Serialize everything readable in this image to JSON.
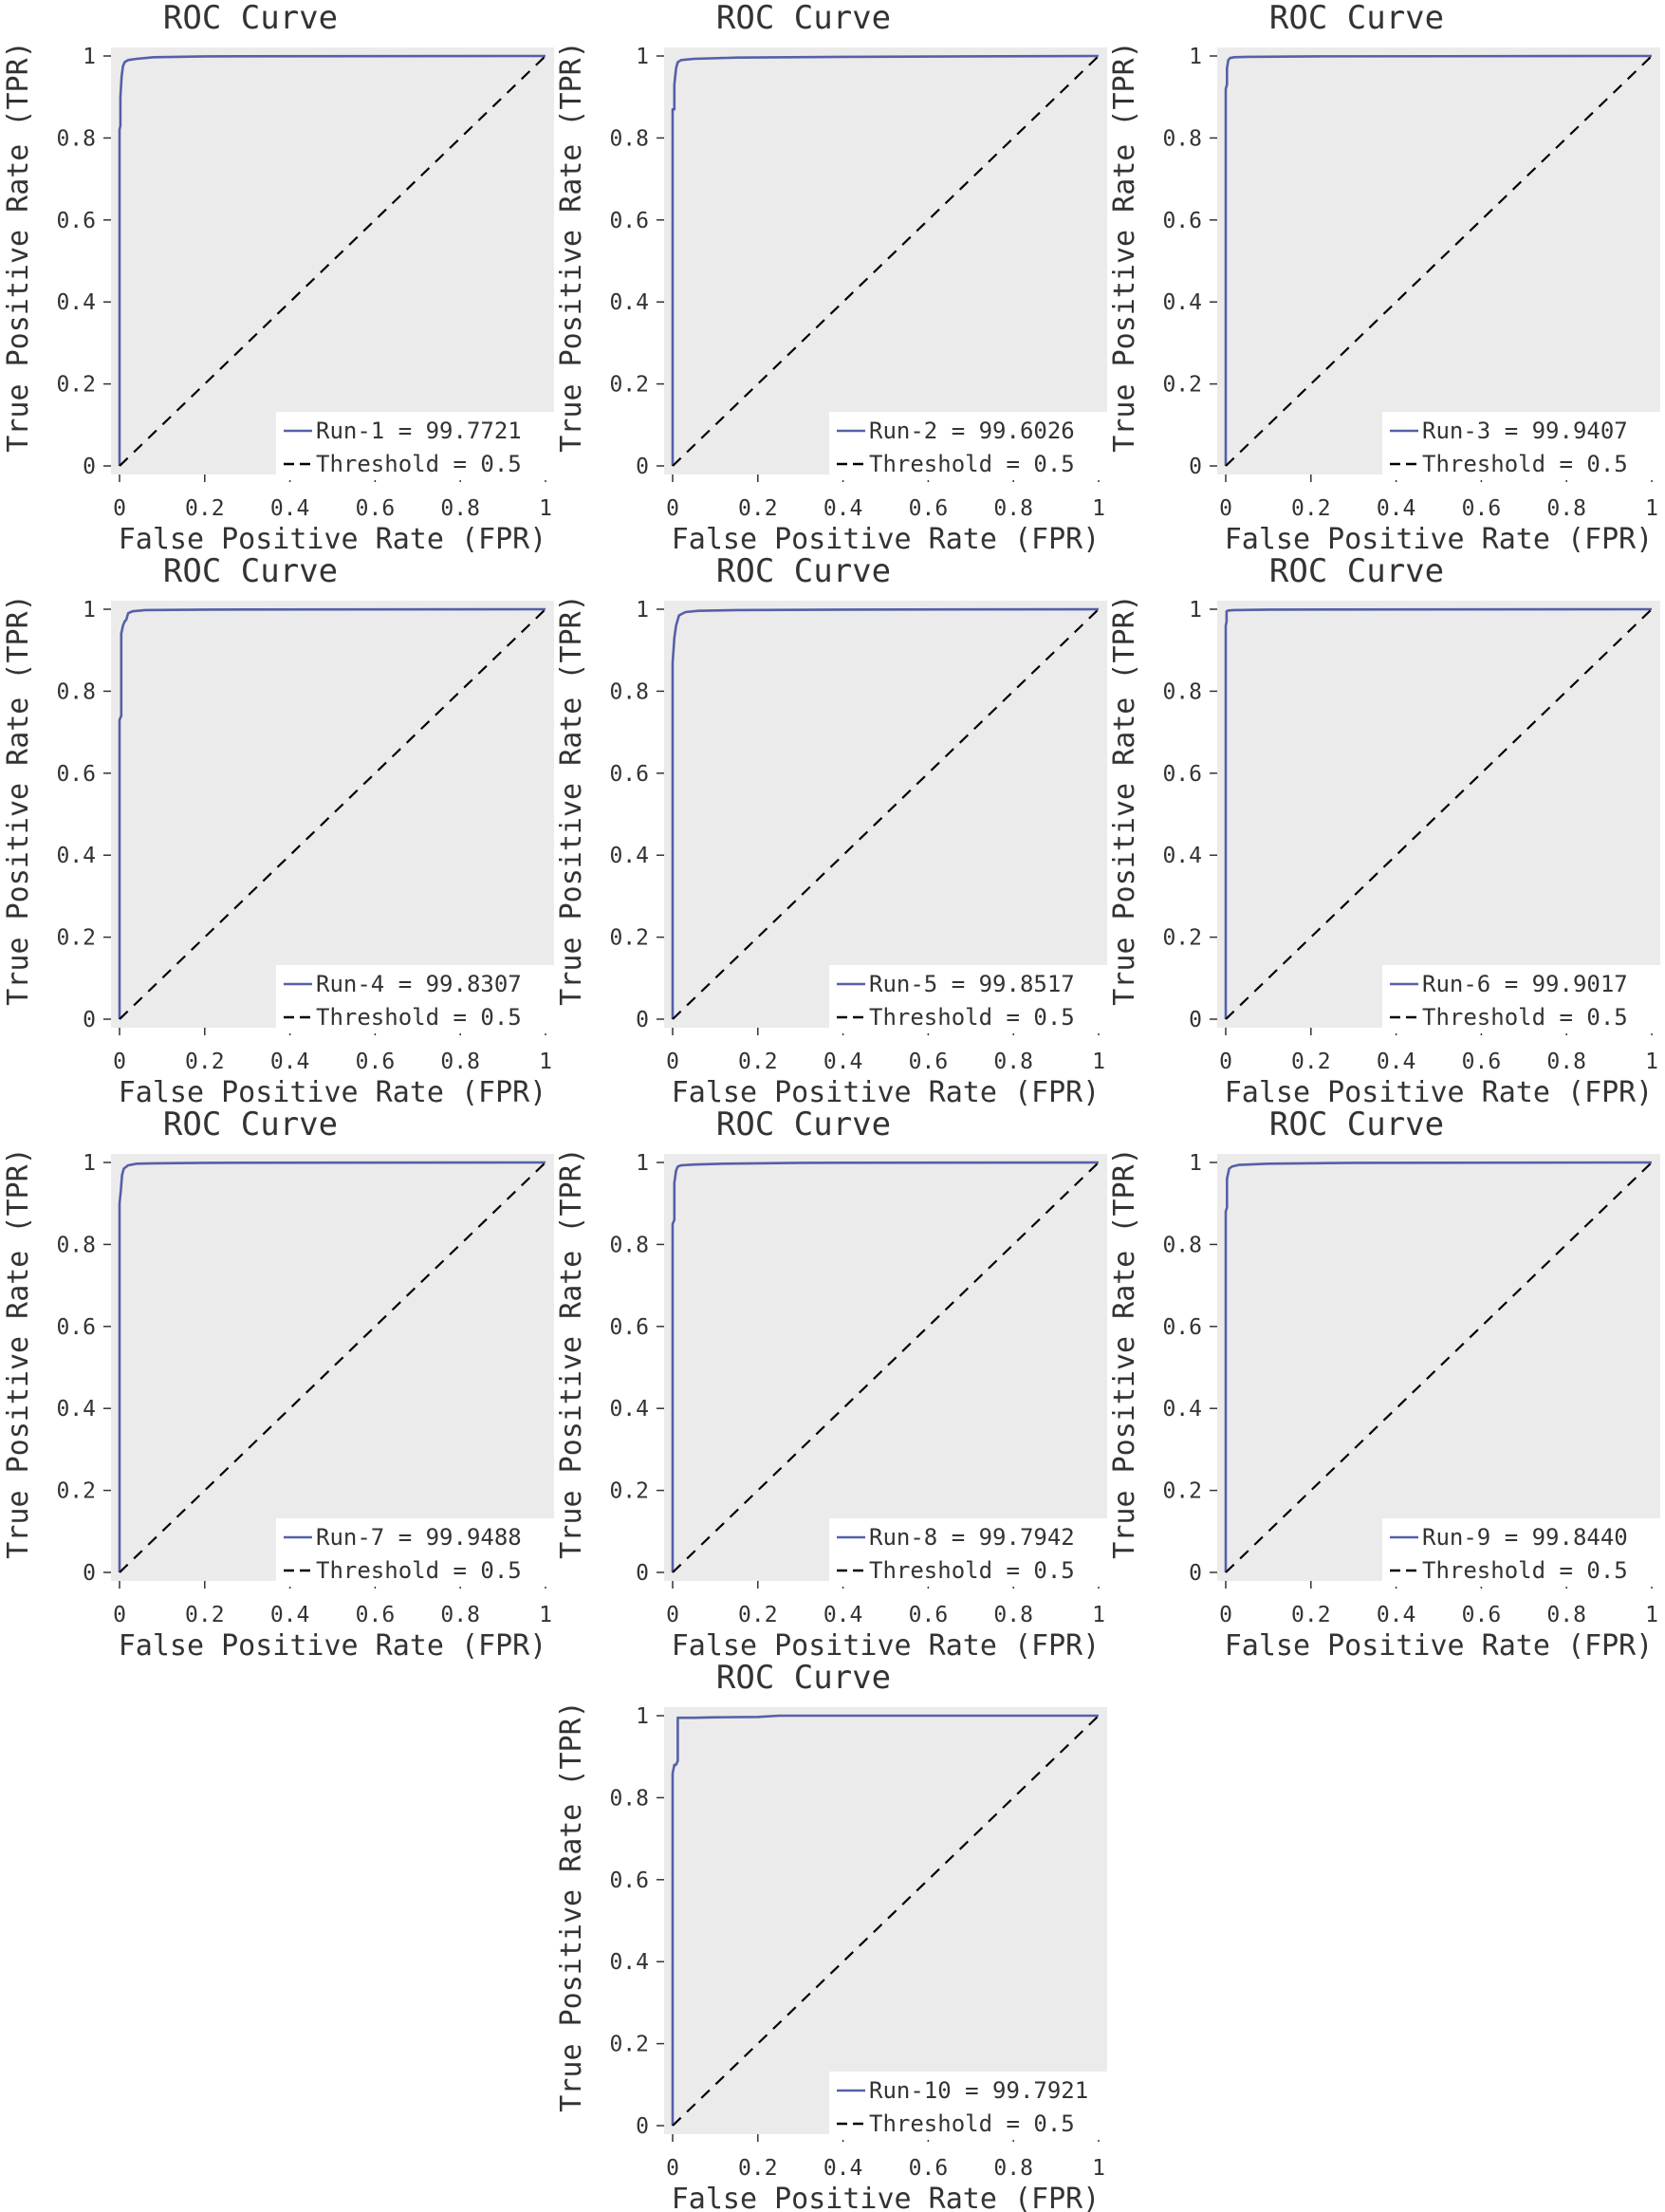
{
  "chart_data": [
    {
      "type": "line",
      "title": "ROC Curve",
      "xlabel": "False Positive Rate (FPR)",
      "ylabel": "True Positive Rate (TPR)",
      "xlim": [
        0,
        1
      ],
      "ylim": [
        0,
        1
      ],
      "xticks": [
        "0",
        "0.2",
        "0.4",
        "0.6",
        "0.8",
        "1"
      ],
      "yticks": [
        "0",
        "0.2",
        "0.4",
        "0.6",
        "0.8",
        "1"
      ],
      "grid": false,
      "legend_position": "bottom-right",
      "background": "#ebebeb",
      "series": [
        {
          "name": "Run-1 = 99.7721",
          "color": "#5560a8",
          "style": "solid",
          "x": [
            0,
            0,
            0.002,
            0.002,
            0.005,
            0.008,
            0.012,
            0.02,
            0.04,
            0.08,
            0.2,
            1
          ],
          "y": [
            0,
            0.82,
            0.83,
            0.9,
            0.95,
            0.975,
            0.985,
            0.99,
            0.993,
            0.997,
            0.999,
            1
          ]
        },
        {
          "name": "Threshold = 0.5",
          "color": "#000000",
          "style": "dashed",
          "x": [
            0,
            1
          ],
          "y": [
            0,
            1
          ]
        }
      ]
    },
    {
      "type": "line",
      "title": "ROC Curve",
      "xlabel": "False Positive Rate (FPR)",
      "ylabel": "True Positive Rate (TPR)",
      "xlim": [
        0,
        1
      ],
      "ylim": [
        0,
        1
      ],
      "xticks": [
        "0",
        "0.2",
        "0.4",
        "0.6",
        "0.8",
        "1"
      ],
      "yticks": [
        "0",
        "0.2",
        "0.4",
        "0.6",
        "0.8",
        "1"
      ],
      "grid": false,
      "legend_position": "bottom-right",
      "background": "#ebebeb",
      "series": [
        {
          "name": "Run-2 = 99.6026",
          "color": "#5560a8",
          "style": "solid",
          "x": [
            0,
            0,
            0.004,
            0.004,
            0.008,
            0.012,
            0.02,
            0.05,
            0.15,
            0.4,
            1
          ],
          "y": [
            0,
            0.87,
            0.87,
            0.93,
            0.97,
            0.985,
            0.99,
            0.993,
            0.996,
            0.998,
            1
          ]
        },
        {
          "name": "Threshold = 0.5",
          "color": "#000000",
          "style": "dashed",
          "x": [
            0,
            1
          ],
          "y": [
            0,
            1
          ]
        }
      ]
    },
    {
      "type": "line",
      "title": "ROC Curve",
      "xlabel": "False Positive Rate (FPR)",
      "ylabel": "True Positive Rate (TPR)",
      "xlim": [
        0,
        1
      ],
      "ylim": [
        0,
        1
      ],
      "xticks": [
        "0",
        "0.2",
        "0.4",
        "0.6",
        "0.8",
        "1"
      ],
      "yticks": [
        "0",
        "0.2",
        "0.4",
        "0.6",
        "0.8",
        "1"
      ],
      "grid": false,
      "legend_position": "bottom-right",
      "background": "#ebebeb",
      "series": [
        {
          "name": "Run-3 = 99.9407",
          "color": "#5560a8",
          "style": "solid",
          "x": [
            0,
            0,
            0.003,
            0.003,
            0.006,
            0.01,
            0.02,
            0.05,
            0.2,
            1
          ],
          "y": [
            0,
            0.92,
            0.93,
            0.97,
            0.99,
            0.995,
            0.997,
            0.998,
            0.999,
            1
          ]
        },
        {
          "name": "Threshold = 0.5",
          "color": "#000000",
          "style": "dashed",
          "x": [
            0,
            1
          ],
          "y": [
            0,
            1
          ]
        }
      ]
    },
    {
      "type": "line",
      "title": "ROC Curve",
      "xlabel": "False Positive Rate (FPR)",
      "ylabel": "True Positive Rate (TPR)",
      "xlim": [
        0,
        1
      ],
      "ylim": [
        0,
        1
      ],
      "xticks": [
        "0",
        "0.2",
        "0.4",
        "0.6",
        "0.8",
        "1"
      ],
      "yticks": [
        "0",
        "0.2",
        "0.4",
        "0.6",
        "0.8",
        "1"
      ],
      "grid": false,
      "legend_position": "bottom-right",
      "background": "#ebebeb",
      "series": [
        {
          "name": "Run-4 = 99.8307",
          "color": "#5560a8",
          "style": "solid",
          "x": [
            0,
            0,
            0.004,
            0.004,
            0.008,
            0.012,
            0.016,
            0.02,
            0.03,
            0.06,
            0.2,
            1
          ],
          "y": [
            0,
            0.73,
            0.74,
            0.94,
            0.96,
            0.97,
            0.975,
            0.99,
            0.995,
            0.998,
            0.999,
            1
          ]
        },
        {
          "name": "Threshold = 0.5",
          "color": "#000000",
          "style": "dashed",
          "x": [
            0,
            1
          ],
          "y": [
            0,
            1
          ]
        }
      ]
    },
    {
      "type": "line",
      "title": "ROC Curve",
      "xlabel": "False Positive Rate (FPR)",
      "ylabel": "True Positive Rate (TPR)",
      "xlim": [
        0,
        1
      ],
      "ylim": [
        0,
        1
      ],
      "xticks": [
        "0",
        "0.2",
        "0.4",
        "0.6",
        "0.8",
        "1"
      ],
      "yticks": [
        "0",
        "0.2",
        "0.4",
        "0.6",
        "0.8",
        "1"
      ],
      "grid": false,
      "legend_position": "bottom-right",
      "background": "#ebebeb",
      "series": [
        {
          "name": "Run-5 = 99.8517",
          "color": "#5560a8",
          "style": "solid",
          "x": [
            0,
            0,
            0.004,
            0.008,
            0.015,
            0.03,
            0.06,
            0.15,
            0.4,
            1
          ],
          "y": [
            0,
            0.87,
            0.93,
            0.96,
            0.985,
            0.993,
            0.996,
            0.998,
            0.999,
            1
          ]
        },
        {
          "name": "Threshold = 0.5",
          "color": "#000000",
          "style": "dashed",
          "x": [
            0,
            1
          ],
          "y": [
            0,
            1
          ]
        }
      ]
    },
    {
      "type": "line",
      "title": "ROC Curve",
      "xlabel": "False Positive Rate (FPR)",
      "ylabel": "True Positive Rate (TPR)",
      "xlim": [
        0,
        1
      ],
      "ylim": [
        0,
        1
      ],
      "xticks": [
        "0",
        "0.2",
        "0.4",
        "0.6",
        "0.8",
        "1"
      ],
      "yticks": [
        "0",
        "0.2",
        "0.4",
        "0.6",
        "0.8",
        "1"
      ],
      "grid": false,
      "legend_position": "bottom-right",
      "background": "#ebebeb",
      "series": [
        {
          "name": "Run-6 = 99.9017",
          "color": "#5560a8",
          "style": "solid",
          "x": [
            0,
            0,
            0.002,
            0.002,
            0.006,
            0.02,
            0.1,
            1
          ],
          "y": [
            0,
            0.96,
            0.97,
            0.995,
            0.997,
            0.998,
            0.999,
            1
          ]
        },
        {
          "name": "Threshold = 0.5",
          "color": "#000000",
          "style": "dashed",
          "x": [
            0,
            1
          ],
          "y": [
            0,
            1
          ]
        }
      ]
    },
    {
      "type": "line",
      "title": "ROC Curve",
      "xlabel": "False Positive Rate (FPR)",
      "ylabel": "True Positive Rate (TPR)",
      "xlim": [
        0,
        1
      ],
      "ylim": [
        0,
        1
      ],
      "xticks": [
        "0",
        "0.2",
        "0.4",
        "0.6",
        "0.8",
        "1"
      ],
      "yticks": [
        "0",
        "0.2",
        "0.4",
        "0.6",
        "0.8",
        "1"
      ],
      "grid": false,
      "legend_position": "bottom-right",
      "background": "#ebebeb",
      "series": [
        {
          "name": "Run-7 = 99.9488",
          "color": "#5560a8",
          "style": "solid",
          "x": [
            0,
            0,
            0.003,
            0.006,
            0.01,
            0.02,
            0.04,
            0.08,
            0.2,
            1
          ],
          "y": [
            0,
            0.9,
            0.93,
            0.97,
            0.985,
            0.993,
            0.997,
            0.998,
            0.999,
            1
          ]
        },
        {
          "name": "Threshold = 0.5",
          "color": "#000000",
          "style": "dashed",
          "x": [
            0,
            1
          ],
          "y": [
            0,
            1
          ]
        }
      ]
    },
    {
      "type": "line",
      "title": "ROC Curve",
      "xlabel": "False Positive Rate (FPR)",
      "ylabel": "True Positive Rate (TPR)",
      "xlim": [
        0,
        1
      ],
      "ylim": [
        0,
        1
      ],
      "xticks": [
        "0",
        "0.2",
        "0.4",
        "0.6",
        "0.8",
        "1"
      ],
      "yticks": [
        "0",
        "0.2",
        "0.4",
        "0.6",
        "0.8",
        "1"
      ],
      "grid": false,
      "legend_position": "bottom-right",
      "background": "#ebebeb",
      "series": [
        {
          "name": "Run-8 = 99.7942",
          "color": "#5560a8",
          "style": "solid",
          "x": [
            0,
            0,
            0.004,
            0.004,
            0.008,
            0.012,
            0.02,
            0.05,
            0.12,
            0.3,
            1
          ],
          "y": [
            0,
            0.85,
            0.86,
            0.95,
            0.98,
            0.99,
            0.993,
            0.995,
            0.997,
            0.999,
            1
          ]
        },
        {
          "name": "Threshold = 0.5",
          "color": "#000000",
          "style": "dashed",
          "x": [
            0,
            1
          ],
          "y": [
            0,
            1
          ]
        }
      ]
    },
    {
      "type": "line",
      "title": "ROC Curve",
      "xlabel": "False Positive Rate (FPR)",
      "ylabel": "True Positive Rate (TPR)",
      "xlim": [
        0,
        1
      ],
      "ylim": [
        0,
        1
      ],
      "xticks": [
        "0",
        "0.2",
        "0.4",
        "0.6",
        "0.8",
        "1"
      ],
      "yticks": [
        "0",
        "0.2",
        "0.4",
        "0.6",
        "0.8",
        "1"
      ],
      "grid": false,
      "legend_position": "bottom-right",
      "background": "#ebebeb",
      "series": [
        {
          "name": "Run-9 = 99.8440",
          "color": "#5560a8",
          "style": "solid",
          "x": [
            0,
            0,
            0.003,
            0.003,
            0.008,
            0.015,
            0.03,
            0.1,
            0.3,
            1
          ],
          "y": [
            0,
            0.88,
            0.89,
            0.96,
            0.985,
            0.99,
            0.994,
            0.997,
            0.999,
            1
          ]
        },
        {
          "name": "Threshold = 0.5",
          "color": "#000000",
          "style": "dashed",
          "x": [
            0,
            1
          ],
          "y": [
            0,
            1
          ]
        }
      ]
    },
    {
      "type": "line",
      "title": "ROC Curve",
      "xlabel": "False Positive Rate (FPR)",
      "ylabel": "True Positive Rate (TPR)",
      "xlim": [
        0,
        1
      ],
      "ylim": [
        0,
        1
      ],
      "xticks": [
        "0",
        "0.2",
        "0.4",
        "0.6",
        "0.8",
        "1"
      ],
      "yticks": [
        "0",
        "0.2",
        "0.4",
        "0.6",
        "0.8",
        "1"
      ],
      "grid": false,
      "legend_position": "bottom-right",
      "background": "#ebebeb",
      "series": [
        {
          "name": "Run-10 = 99.7921",
          "color": "#5560a8",
          "style": "solid",
          "x": [
            0,
            0,
            0.004,
            0.008,
            0.012,
            0.012,
            0.05,
            0.1,
            0.2,
            0.25,
            1
          ],
          "y": [
            0,
            0.86,
            0.88,
            0.88,
            0.89,
            0.995,
            0.995,
            0.996,
            0.997,
            1,
            1
          ]
        },
        {
          "name": "Threshold = 0.5",
          "color": "#000000",
          "style": "dashed",
          "x": [
            0,
            1
          ],
          "y": [
            0,
            1
          ]
        }
      ]
    }
  ]
}
